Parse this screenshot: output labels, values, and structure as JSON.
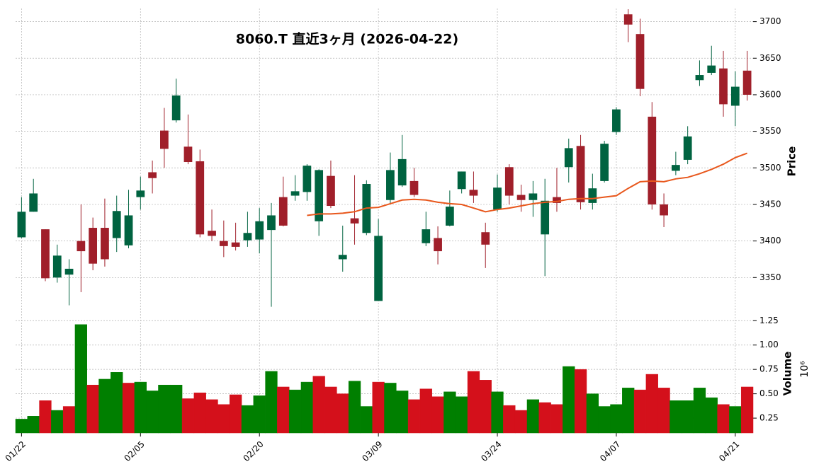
{
  "chart_data": {
    "type": "candlestick",
    "title": "8060.T  直近3ヶ月  (2026-04-22)",
    "ylabel": "Price",
    "volume_label": "Volume",
    "volume_scale_label": "10⁶",
    "categories": [
      "01/22",
      null,
      null,
      null,
      null,
      null,
      null,
      null,
      null,
      null,
      "02/05",
      null,
      null,
      null,
      null,
      null,
      null,
      null,
      null,
      null,
      "02/20",
      null,
      null,
      null,
      null,
      null,
      null,
      null,
      null,
      null,
      "03/09",
      null,
      null,
      null,
      null,
      null,
      null,
      null,
      null,
      null,
      "03/24",
      null,
      null,
      null,
      null,
      null,
      null,
      null,
      null,
      null,
      "04/07",
      null,
      null,
      null,
      null,
      null,
      null,
      null,
      null,
      null,
      "04/21",
      null
    ],
    "open": [
      3405,
      3440,
      3416,
      3350,
      3354,
      3400,
      3418,
      3418,
      3404,
      3394,
      3460,
      3494,
      3551,
      3565,
      3529,
      3509,
      3414,
      3400,
      3398,
      3401,
      3402,
      3415,
      3460,
      3462,
      3467,
      3427,
      3489,
      3375,
      3431,
      3411,
      3318,
      3456,
      3476,
      3482,
      3397,
      3404,
      3421,
      3471,
      3470,
      3412,
      3443,
      3501,
      3463,
      3456,
      3409,
      3460,
      3501,
      3530,
      3452,
      3482,
      3549,
      3710,
      3683,
      3570,
      3450,
      3496,
      3511,
      3620,
      3630,
      3636,
      3585,
      3633
    ],
    "high": [
      3460,
      3485,
      3416,
      3395,
      3375,
      3450,
      3432,
      3458,
      3462,
      3470,
      3488,
      3510,
      3582,
      3622,
      3573,
      3525,
      3443,
      3428,
      3425,
      3440,
      3445,
      3452,
      3488,
      3490,
      3505,
      3498,
      3510,
      3421,
      3490,
      3483,
      3430,
      3521,
      3545,
      3500,
      3440,
      3420,
      3469,
      3495,
      3495,
      3425,
      3491,
      3505,
      3477,
      3482,
      3485,
      3500,
      3540,
      3545,
      3492,
      3537,
      3583,
      3717,
      3704,
      3590,
      3465,
      3522,
      3557,
      3647,
      3667,
      3660,
      3632,
      3660
    ],
    "low": [
      3404,
      3440,
      3345,
      3343,
      3312,
      3330,
      3360,
      3365,
      3385,
      3390,
      3443,
      3465,
      3500,
      3562,
      3505,
      3405,
      3400,
      3378,
      3387,
      3392,
      3383,
      3310,
      3420,
      3455,
      3455,
      3407,
      3445,
      3358,
      3395,
      3408,
      3318,
      3450,
      3474,
      3460,
      3393,
      3368,
      3420,
      3465,
      3452,
      3363,
      3440,
      3450,
      3440,
      3433,
      3352,
      3440,
      3480,
      3443,
      3443,
      3480,
      3545,
      3672,
      3598,
      3443,
      3419,
      3490,
      3505,
      3612,
      3627,
      3570,
      3557,
      3592
    ],
    "close": [
      3440,
      3465,
      3349,
      3380,
      3362,
      3386,
      3369,
      3375,
      3441,
      3435,
      3469,
      3486,
      3526,
      3599,
      3508,
      3409,
      3407,
      3393,
      3392,
      3411,
      3427,
      3435,
      3421,
      3468,
      3503,
      3497,
      3448,
      3381,
      3424,
      3478,
      3407,
      3497,
      3512,
      3463,
      3416,
      3386,
      3447,
      3495,
      3462,
      3395,
      3473,
      3462,
      3456,
      3465,
      3455,
      3452,
      3527,
      3453,
      3472,
      3533,
      3580,
      3696,
      3608,
      3450,
      3435,
      3504,
      3543,
      3627,
      3640,
      3587,
      3611,
      3600
    ],
    "volume": [
      0.24,
      0.27,
      0.43,
      0.33,
      0.37,
      1.21,
      0.59,
      0.65,
      0.72,
      0.61,
      0.62,
      0.53,
      0.59,
      0.59,
      0.45,
      0.51,
      0.44,
      0.39,
      0.49,
      0.38,
      0.48,
      0.73,
      0.57,
      0.54,
      0.62,
      0.68,
      0.57,
      0.5,
      0.63,
      0.37,
      0.62,
      0.61,
      0.53,
      0.44,
      0.55,
      0.47,
      0.52,
      0.47,
      0.73,
      0.64,
      0.52,
      0.38,
      0.33,
      0.44,
      0.41,
      0.39,
      0.78,
      0.75,
      0.5,
      0.37,
      0.39,
      0.56,
      0.54,
      0.7,
      0.56,
      0.43,
      0.43,
      0.56,
      0.46,
      0.39,
      0.37,
      0.57
    ],
    "moving_average": {
      "color": "#e8571c",
      "values": [
        null,
        null,
        null,
        null,
        null,
        null,
        null,
        null,
        null,
        null,
        null,
        null,
        null,
        null,
        null,
        null,
        null,
        null,
        null,
        null,
        null,
        null,
        null,
        null,
        3435,
        3437,
        3437,
        3438,
        3440,
        3445,
        3446,
        3451,
        3456,
        3457,
        3456,
        3453,
        3451,
        3450,
        3445,
        3440,
        3443,
        3445,
        3448,
        3451,
        3453,
        3454,
        3457,
        3458,
        3458,
        3460,
        3462,
        3472,
        3481,
        3482,
        3481,
        3485,
        3487,
        3492,
        3498,
        3505,
        3514,
        3520
      ]
    },
    "up_color": "#006340",
    "down_color": "#a01f2a",
    "volume_up_color": "#007f00",
    "volume_down_color": "#d4101b",
    "ylim": [
      3299,
      3718
    ],
    "yticks": [
      3350,
      3400,
      3450,
      3500,
      3550,
      3600,
      3650,
      3700
    ],
    "volume_ylim": [
      0.098,
      1.31
    ],
    "volume_yticks": [
      0.25,
      {
        "value": 0.5,
        "label": "0.50"
      },
      0.75,
      {
        "value": 1.0,
        "label": "1.00"
      },
      1.25
    ],
    "grid": true
  }
}
